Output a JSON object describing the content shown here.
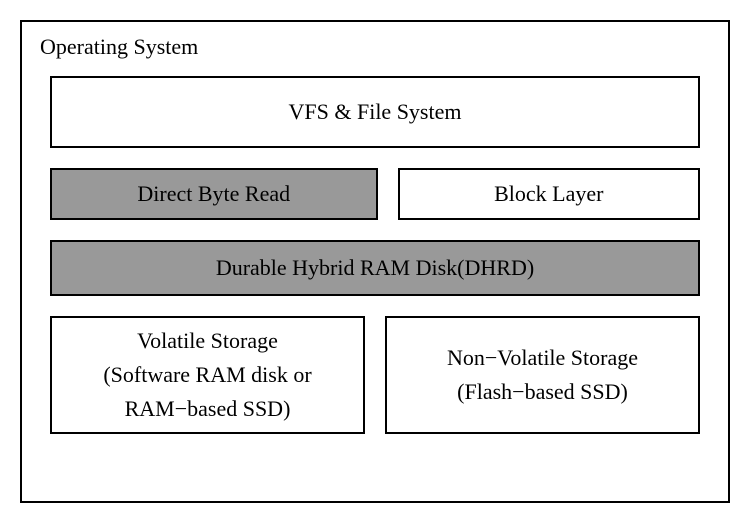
{
  "diagram": {
    "outer_label": "Operating System",
    "border_color": "#000000",
    "background_color": "#ffffff",
    "shaded_color": "#999999",
    "font_family": "Times New Roman",
    "font_size_pt": 16,
    "boxes": {
      "vfs": {
        "label": "VFS & File System",
        "shaded": false
      },
      "direct_byte_read": {
        "label": "Direct Byte Read",
        "shaded": true
      },
      "block_layer": {
        "label": "Block Layer",
        "shaded": false
      },
      "dhrd": {
        "label": "Durable Hybrid RAM Disk(DHRD)",
        "shaded": true
      },
      "volatile_storage": {
        "line1": "Volatile Storage",
        "line2": "(Software RAM disk or",
        "line3": "RAM−based SSD)",
        "shaded": false
      },
      "nonvolatile_storage": {
        "line1": "Non−Volatile Storage",
        "line2": "(Flash−based SSD)",
        "shaded": false
      }
    }
  }
}
